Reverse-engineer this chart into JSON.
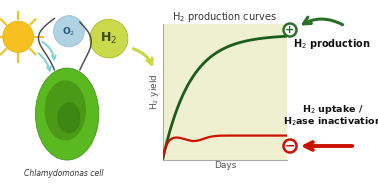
{
  "title": "H$_2$ production curves",
  "xlabel": "Days",
  "ylabel": "H$_2$ yield",
  "plot_bg_color": "#eff0d0",
  "green_line_color": "#1a5c1a",
  "red_line_color": "#cc1100",
  "plus_color": "#2a6e2a",
  "minus_color": "#cc1100",
  "arrow_green_color": "#2a6e2a",
  "arrow_red_color": "#cc1100",
  "o2_bubble_color": "#a8cfe0",
  "h2_bubble_color": "#c8d840",
  "cell_outer_color": "#5ab820",
  "cell_inner_color": "#4a9a18",
  "cell_core_color": "#3a8010",
  "sun_color": "#f5c020",
  "light_arrow_color": "#80d0d8",
  "h2_arrow_color": "#c8d840",
  "chlamydomonas_label": "Chlamydomonas cell",
  "label_h2_production": "H$_2$ production",
  "label_h2_uptake_line1": "H$_2$ uptake /",
  "label_h2_uptake_line2": "H$_2$ase inactivation"
}
